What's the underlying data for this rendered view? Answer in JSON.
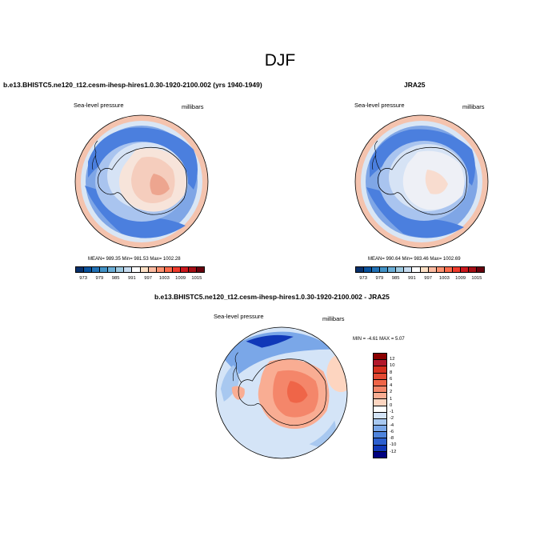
{
  "title": "DJF",
  "panels": {
    "model": {
      "title": "b.e13.BHISTC5.ne120_t12.cesm-ihesp-hires1.0.30-1920-2100.002 (yrs 1940-1949)",
      "left_label": "Sea-level pressure",
      "right_label": "millibars",
      "stats": "MEAN= 989.35  Min= 981.53  Max= 1002.28"
    },
    "obs": {
      "title": "JRA25",
      "left_label": "Sea-level pressure",
      "right_label": "millibars",
      "stats": "MEAN= 990.64  Min= 983.46  Max= 1002.69"
    },
    "diff": {
      "title": "b.e13.BHISTC5.ne120_t12.cesm-ihesp-hires1.0.30-1920-2100.002 - JRA25",
      "left_label": "Sea-level pressure",
      "right_label": "millibars",
      "stats": "MIN =  -4.61 MAX =   5.07"
    }
  },
  "colorbar_field": {
    "ticks": [
      "973",
      "979",
      "985",
      "991",
      "997",
      "1003",
      "1009",
      "1015"
    ],
    "colors": [
      "#08306b",
      "#08519c",
      "#2171b5",
      "#4292c6",
      "#6baed6",
      "#9ecae1",
      "#c6dbef",
      "#ffffff",
      "#fde0c5",
      "#fcbba1",
      "#fc9272",
      "#fb6a4a",
      "#ef3b2c",
      "#cb181d",
      "#a50f15",
      "#67000d"
    ]
  },
  "colorbar_diff": {
    "labels": [
      "12",
      "10",
      "8",
      "6",
      "4",
      "2",
      "1",
      "0",
      "-1",
      "-2",
      "-4",
      "-6",
      "-8",
      "-10",
      "-12"
    ],
    "colors": [
      "#8b0000",
      "#b2182b",
      "#d6301f",
      "#e34a33",
      "#ef6548",
      "#f4866a",
      "#f9ad93",
      "#fdd5c0",
      "#ffffff",
      "#d4e4f7",
      "#a8c8f0",
      "#7aa7e8",
      "#4f84dc",
      "#2c5fcf",
      "#1038b8",
      "#000080"
    ]
  }
}
